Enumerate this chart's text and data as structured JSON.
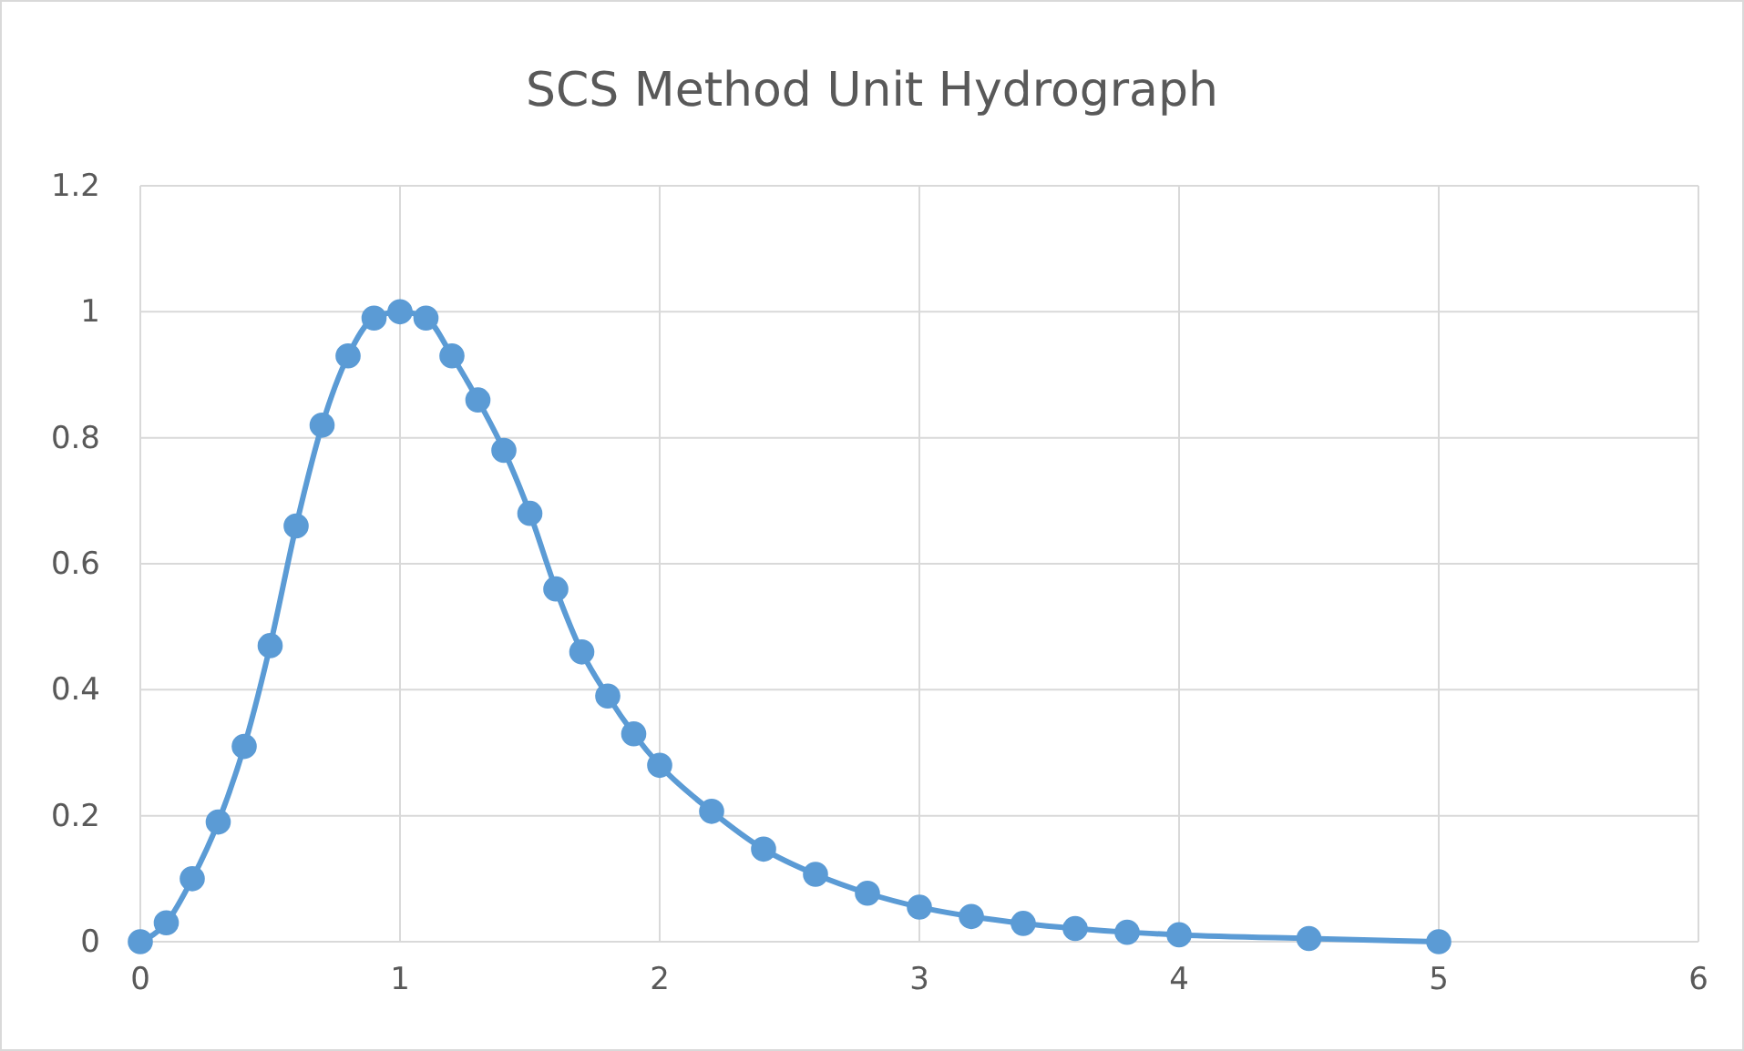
{
  "chart_data": {
    "type": "line",
    "title": "SCS Method Unit Hydrograph",
    "series": [
      {
        "color": "#5b9bd5",
        "x": [
          0,
          0.1,
          0.2,
          0.3,
          0.4,
          0.5,
          0.6,
          0.7,
          0.8,
          0.9,
          1.0,
          1.1,
          1.2,
          1.3,
          1.4,
          1.5,
          1.6,
          1.7,
          1.8,
          1.9,
          2.0,
          2.2,
          2.4,
          2.6,
          2.8,
          3.0,
          3.2,
          3.4,
          3.6,
          3.8,
          4.0,
          4.5,
          5.0
        ],
        "values": [
          0,
          0.03,
          0.1,
          0.19,
          0.31,
          0.47,
          0.66,
          0.82,
          0.93,
          0.99,
          1.0,
          0.99,
          0.93,
          0.86,
          0.78,
          0.68,
          0.56,
          0.46,
          0.39,
          0.33,
          0.28,
          0.207,
          0.147,
          0.107,
          0.077,
          0.055,
          0.04,
          0.029,
          0.021,
          0.015,
          0.011,
          0.005,
          0
        ]
      }
    ],
    "xlim": [
      0,
      6
    ],
    "xticks": [
      0,
      1,
      2,
      3,
      4,
      5,
      6
    ],
    "ylim": [
      0,
      1.2
    ],
    "yticks": [
      0,
      {
        "value": 0.2,
        "label": "0.2"
      },
      {
        "value": 0.4,
        "label": "0.4"
      },
      {
        "value": 0.6,
        "label": "0.6"
      },
      {
        "value": 0.8,
        "label": "0.8"
      },
      1,
      {
        "value": 1.2,
        "label": "1.2"
      }
    ],
    "grid": true,
    "marker": "circle",
    "line_style": "solid"
  }
}
